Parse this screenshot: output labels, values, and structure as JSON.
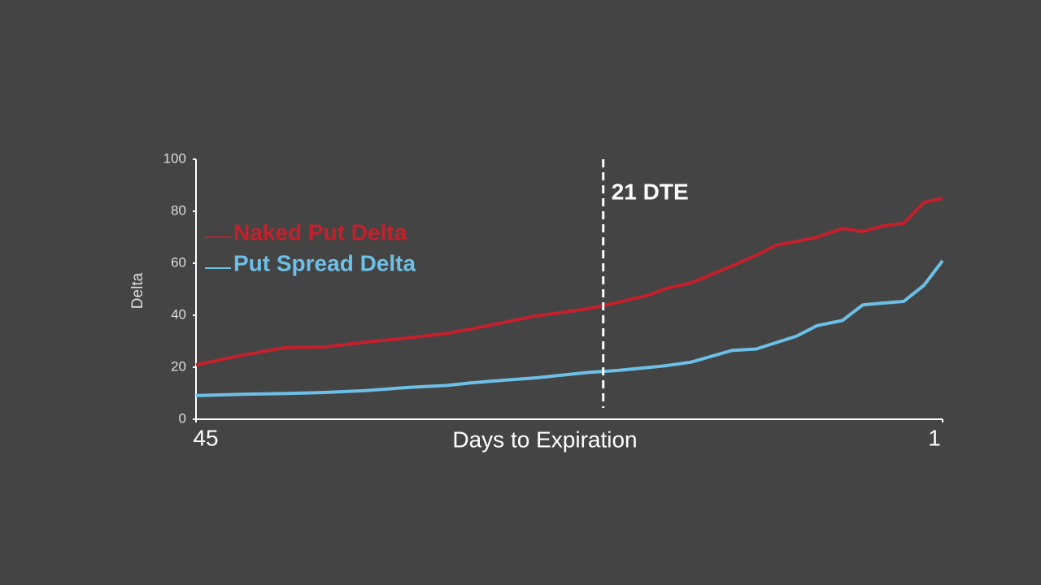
{
  "chart_data": {
    "type": "line",
    "x_label": "Days to Expiration",
    "y_label": "Delta",
    "x": [
      45,
      42.2,
      39.8,
      37.4,
      35,
      32.6,
      30.2,
      28.8,
      26.9,
      25,
      21.9,
      20.1,
      18.2,
      17.3,
      15.8,
      13.4,
      12,
      10.8,
      9.6,
      8.4,
      6.9,
      5.7,
      4.5,
      3.3,
      2.1,
      1
    ],
    "series": [
      {
        "name": "Naked Put Delta",
        "color": "#c4202b",
        "values": [
          20.9,
          24.7,
          27.5,
          27.8,
          29.7,
          31.2,
          33,
          34.7,
          37.2,
          39.7,
          42.5,
          45,
          48,
          50.3,
          52.5,
          59,
          63,
          67,
          68.4,
          70,
          73.4,
          72.2,
          74.4,
          75.3,
          83.4,
          85
        ]
      },
      {
        "name": "Put Spread Delta",
        "color": "#6cbfe6",
        "values": [
          9.1,
          9.6,
          9.9,
          10.3,
          11,
          12.2,
          13,
          14,
          15,
          15.9,
          18,
          18.8,
          20,
          20.6,
          22,
          26.5,
          27,
          29.5,
          32,
          36,
          38,
          44,
          44.7,
          45.3,
          51.5,
          61
        ]
      }
    ],
    "xlim": [
      45,
      1
    ],
    "xticks": [
      45,
      1
    ],
    "ylim": [
      0,
      100
    ],
    "yticks": [
      0,
      20,
      40,
      60,
      80,
      100
    ],
    "annotation": {
      "x": 21,
      "label": "21 DTE"
    }
  }
}
